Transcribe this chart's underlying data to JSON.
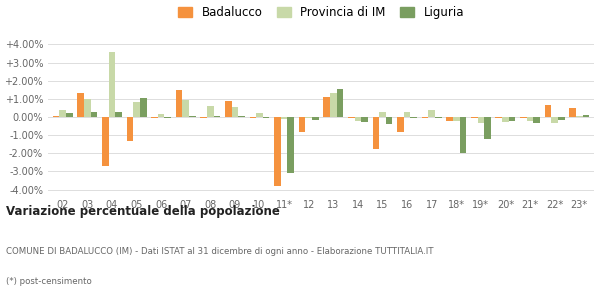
{
  "categories": [
    "02",
    "03",
    "04",
    "05",
    "06",
    "07",
    "08",
    "09",
    "10",
    "11*",
    "12",
    "13",
    "14",
    "15",
    "16",
    "17",
    "18*",
    "19*",
    "20*",
    "21*",
    "22*",
    "23*"
  ],
  "badalucco": [
    0.05,
    1.3,
    -2.7,
    -1.35,
    -0.05,
    1.5,
    -0.05,
    0.9,
    -0.05,
    -3.8,
    -0.8,
    1.1,
    -0.05,
    -1.75,
    -0.85,
    -0.05,
    -0.2,
    -0.05,
    -0.05,
    -0.05,
    0.65,
    0.5
  ],
  "provincia": [
    0.4,
    1.0,
    3.6,
    0.85,
    0.15,
    0.95,
    0.6,
    0.55,
    0.2,
    -0.1,
    -0.05,
    1.35,
    -0.2,
    0.25,
    0.3,
    0.4,
    -0.2,
    -0.35,
    -0.25,
    -0.2,
    -0.35,
    0.05
  ],
  "liguria": [
    0.2,
    0.3,
    0.3,
    1.05,
    -0.05,
    0.05,
    0.05,
    0.05,
    -0.05,
    -3.1,
    -0.15,
    1.55,
    -0.3,
    -0.4,
    -0.05,
    -0.05,
    -2.0,
    -1.2,
    -0.2,
    -0.35,
    -0.15,
    0.1
  ],
  "bar_color_badalucco": "#f5923e",
  "bar_color_provincia": "#c8d9a8",
  "bar_color_liguria": "#7a9e60",
  "title": "Variazione percentuale della popolazione",
  "subtitle2": "COMUNE DI BADALUCCO (IM) - Dati ISTAT al 31 dicembre di ogni anno - Elaborazione TUTTITALIA.IT",
  "subtitle3": "(*) post-censimento",
  "legend_labels": [
    "Badalucco",
    "Provincia di IM",
    "Liguria"
  ],
  "yticks": [
    -4.0,
    -3.0,
    -2.0,
    -1.0,
    0.0,
    1.0,
    2.0,
    3.0,
    4.0
  ],
  "ytick_labels": [
    "-4.00%",
    "-3.00%",
    "-2.00%",
    "-1.00%",
    "0.00%",
    "+1.00%",
    "+2.00%",
    "+3.00%",
    "+4.00%"
  ],
  "ylim": [
    -4.3,
    4.3
  ],
  "background_color": "#ffffff",
  "grid_color": "#dddddd"
}
